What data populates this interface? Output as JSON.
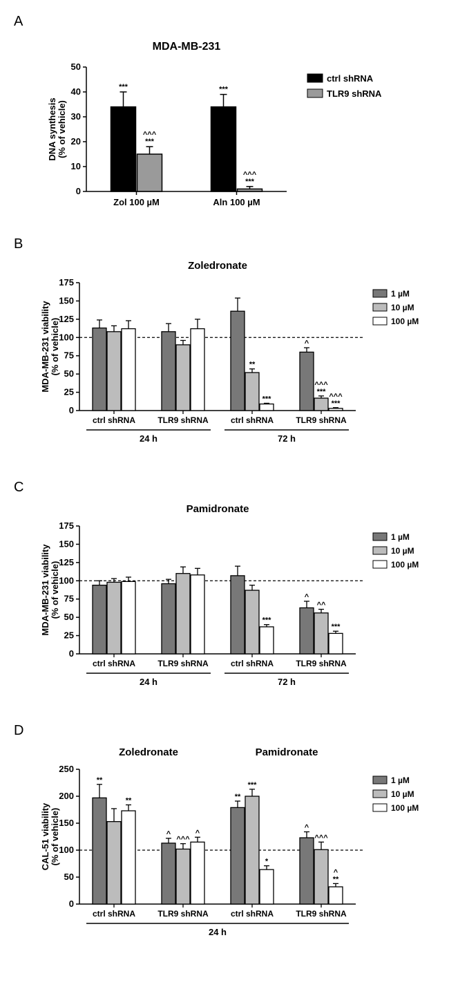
{
  "panelA": {
    "label": "A",
    "title": "MDA-MB-231",
    "ylabel": "DNA synthesis\n(% of vehicle)",
    "ymax": 50,
    "ytick": 10,
    "categories": [
      "Zol 100 µM",
      "Aln 100 µM"
    ],
    "series": [
      {
        "name": "ctrl shRNA",
        "color": "#000000",
        "values": [
          34,
          34
        ],
        "err": [
          6,
          5
        ],
        "sig": [
          "***",
          "***"
        ]
      },
      {
        "name": "TLR9 shRNA",
        "color": "#9a9a9a",
        "values": [
          15,
          1
        ],
        "err": [
          3,
          1
        ],
        "sig": [
          "^^^\n***",
          "^^^\n***"
        ]
      }
    ],
    "legend": [
      {
        "label": "ctrl shRNA",
        "color": "#000000"
      },
      {
        "label": "TLR9 shRNA",
        "color": "#9a9a9a"
      }
    ]
  },
  "panelB": {
    "label": "B",
    "title": "Zoledronate",
    "ylabel": "MDA-MB-231 viability\n(% of vehicle)",
    "ymax": 175,
    "ytick": 25,
    "refline": 100,
    "groups": [
      "ctrl shRNA",
      "TLR9 shRNA",
      "ctrl shRNA",
      "TLR9 shRNA"
    ],
    "timeLabels": [
      "24 h",
      "72 h"
    ],
    "doses": [
      "1 µM",
      "10 µM",
      "100 µM"
    ],
    "colors": [
      "#787878",
      "#bcbcbc",
      "#ffffff"
    ],
    "data": [
      {
        "vals": [
          113,
          108,
          112
        ],
        "err": [
          11,
          8,
          11
        ],
        "sig": [
          "",
          "",
          ""
        ]
      },
      {
        "vals": [
          108,
          90,
          112
        ],
        "err": [
          11,
          6,
          13
        ],
        "sig": [
          "",
          "",
          ""
        ]
      },
      {
        "vals": [
          136,
          52,
          9
        ],
        "err": [
          18,
          5,
          1
        ],
        "sig": [
          "",
          "**",
          "***"
        ]
      },
      {
        "vals": [
          80,
          17,
          3
        ],
        "err": [
          6,
          3,
          1
        ],
        "sig": [
          "^",
          "^^^\n***",
          "^^^\n***"
        ]
      }
    ]
  },
  "panelC": {
    "label": "C",
    "title": "Pamidronate",
    "ylabel": "MDA-MB-231 viability\n(% of vehicle)",
    "ymax": 175,
    "ytick": 25,
    "refline": 100,
    "groups": [
      "ctrl shRNA",
      "TLR9 shRNA",
      "ctrl shRNA",
      "TLR9 shRNA"
    ],
    "timeLabels": [
      "24 h",
      "72 h"
    ],
    "doses": [
      "1 µM",
      "10 µM",
      "100 µM"
    ],
    "colors": [
      "#787878",
      "#bcbcbc",
      "#ffffff"
    ],
    "data": [
      {
        "vals": [
          94,
          98,
          99
        ],
        "err": [
          6,
          5,
          6
        ],
        "sig": [
          "",
          "",
          ""
        ]
      },
      {
        "vals": [
          96,
          110,
          108
        ],
        "err": [
          6,
          9,
          9
        ],
        "sig": [
          "",
          "",
          ""
        ]
      },
      {
        "vals": [
          107,
          87,
          37
        ],
        "err": [
          13,
          7,
          3
        ],
        "sig": [
          "",
          "",
          "***"
        ]
      },
      {
        "vals": [
          63,
          56,
          28
        ],
        "err": [
          9,
          5,
          3
        ],
        "sig": [
          "^",
          "^^",
          "***"
        ]
      }
    ]
  },
  "panelD": {
    "label": "D",
    "titles": [
      "Zoledronate",
      "Pamidronate"
    ],
    "ylabel": "CAL-51 viability\n(% of vehicle)",
    "ymax": 250,
    "ytick": 50,
    "refline": 100,
    "groups": [
      "ctrl shRNA",
      "TLR9 shRNA",
      "ctrl shRNA",
      "TLR9 shRNA"
    ],
    "timeLabel": "24 h",
    "doses": [
      "1 µM",
      "10 µM",
      "100 µM"
    ],
    "colors": [
      "#787878",
      "#bcbcbc",
      "#ffffff"
    ],
    "data": [
      {
        "vals": [
          197,
          153,
          173
        ],
        "err": [
          25,
          24,
          11
        ],
        "sig": [
          "**",
          "",
          "**"
        ]
      },
      {
        "vals": [
          113,
          102,
          115
        ],
        "err": [
          9,
          10,
          9
        ],
        "sig": [
          "^",
          "^^^",
          "^"
        ]
      },
      {
        "vals": [
          179,
          200,
          64
        ],
        "err": [
          12,
          13,
          7
        ],
        "sig": [
          "**",
          "***",
          "*"
        ]
      },
      {
        "vals": [
          123,
          101,
          32
        ],
        "err": [
          11,
          14,
          6
        ],
        "sig": [
          "^",
          "^^^",
          "^\n**"
        ]
      }
    ]
  }
}
